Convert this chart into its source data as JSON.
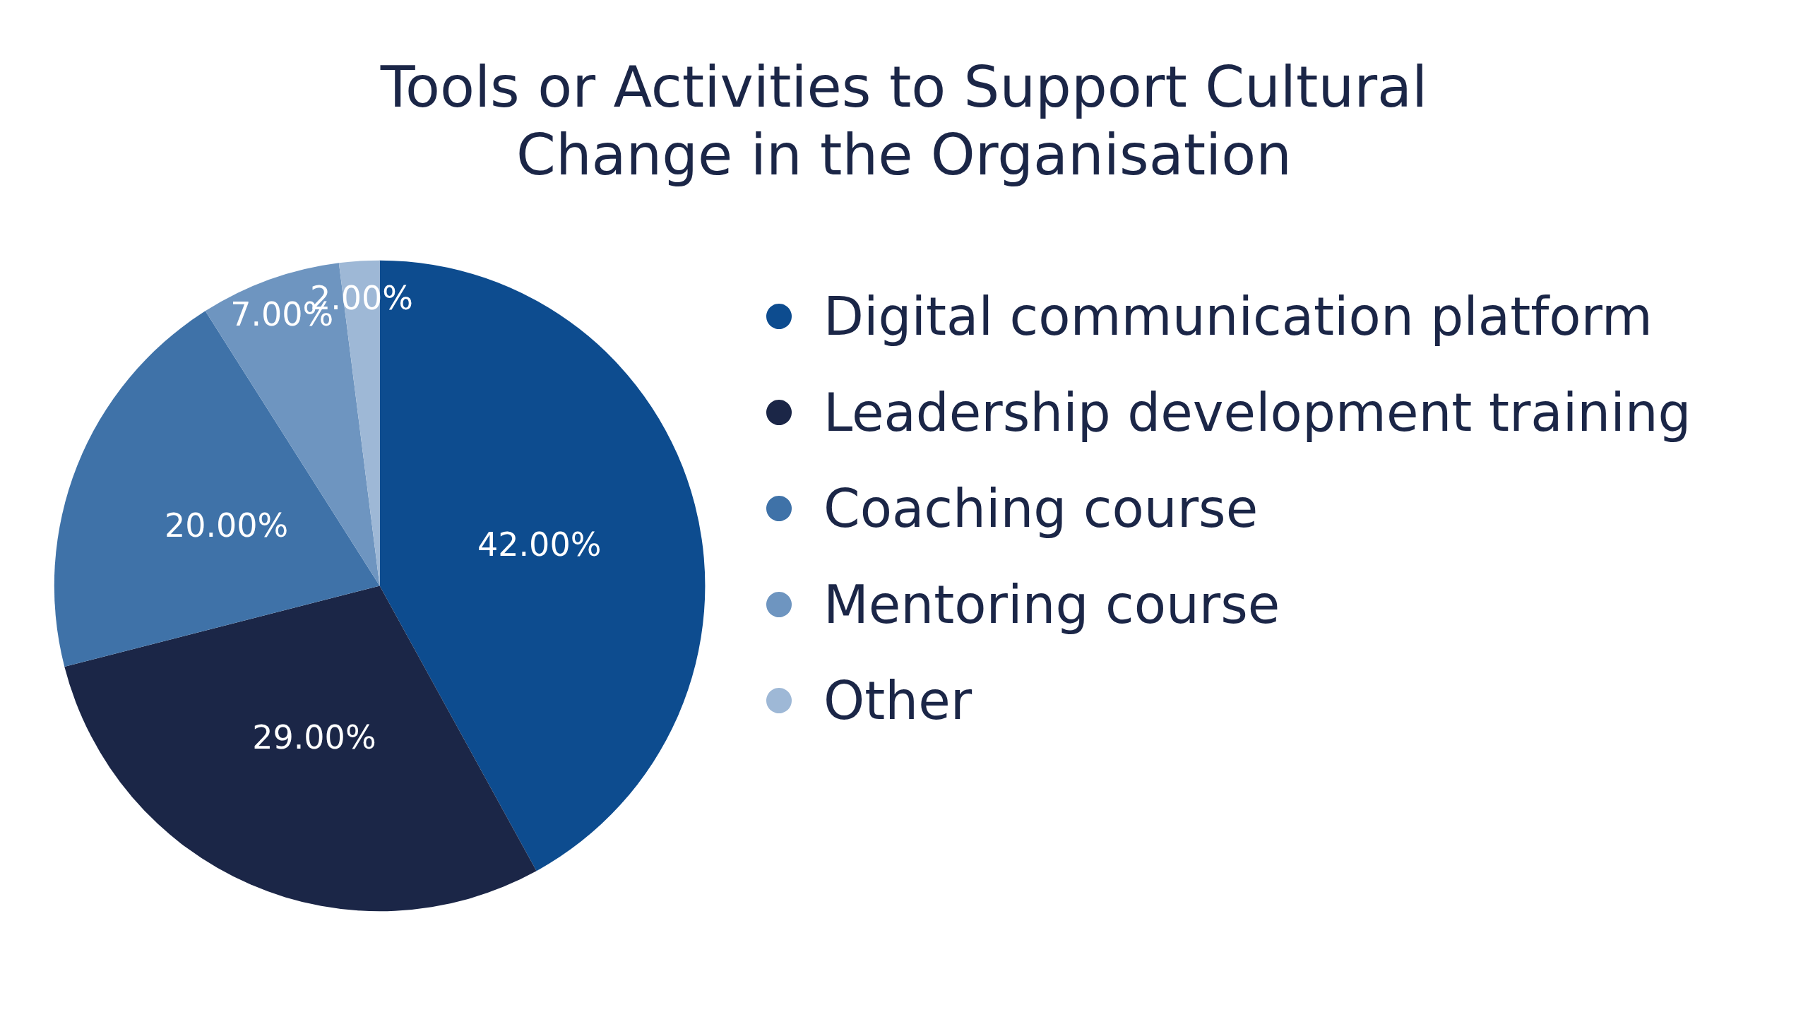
{
  "chart_data": {
    "type": "pie",
    "title": "Tools or Activities to Support Cultural\nChange in the Organisation",
    "categories": [
      "Digital communication platform",
      "Leadership development training",
      "Coaching course",
      "Mentoring course",
      "Other"
    ],
    "values": [
      42,
      29,
      20,
      7,
      2
    ],
    "value_labels": [
      "42.00%",
      "29.00%",
      "20.00%",
      "7.00%",
      "2.00%"
    ],
    "colors": [
      "#0d4c8f",
      "#1b2647",
      "#3f72a8",
      "#6e95c0",
      "#9eb8d6"
    ],
    "legend": "right"
  }
}
